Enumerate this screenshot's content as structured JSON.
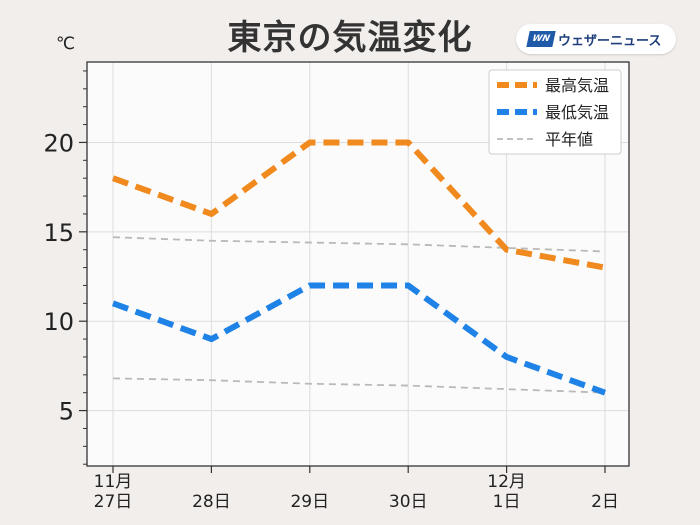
{
  "title": "東京の気温変化",
  "unit_label": "℃",
  "brand": {
    "logo_text": "WN",
    "name": "ウェザーニュース",
    "logo_color": "#1e5aa8"
  },
  "chart_data": {
    "type": "line",
    "title": "東京の気温変化",
    "ylabel": "℃",
    "xlabel": "",
    "ylim": [
      1.9,
      24.5
    ],
    "yticks": [
      5,
      10,
      15,
      20
    ],
    "ytick_labels": [
      "5",
      "10",
      "15",
      "20"
    ],
    "categories": [
      "11月\n27日",
      "28日",
      "29日",
      "30日",
      "12月\n1日",
      "2日"
    ],
    "grid": true,
    "legend_position": "top-right",
    "series": [
      {
        "name": "最高気温",
        "values": [
          18,
          16,
          20,
          20,
          14,
          13
        ],
        "color": "#f08a1e",
        "style": "dashed-thick"
      },
      {
        "name": "最低気温",
        "values": [
          11,
          9,
          12,
          12,
          8,
          6
        ],
        "color": "#1e82e6",
        "style": "dashed-thick"
      },
      {
        "name": "平年値",
        "values": [
          14.7,
          14.5,
          14.4,
          14.3,
          14.1,
          13.9
        ],
        "color": "#b9b9b9",
        "style": "dashed-thin"
      },
      {
        "name": "平年値",
        "values": [
          6.8,
          6.7,
          6.5,
          6.4,
          6.2,
          6.0
        ],
        "color": "#b9b9b9",
        "style": "dashed-thin",
        "legend": false
      }
    ]
  }
}
